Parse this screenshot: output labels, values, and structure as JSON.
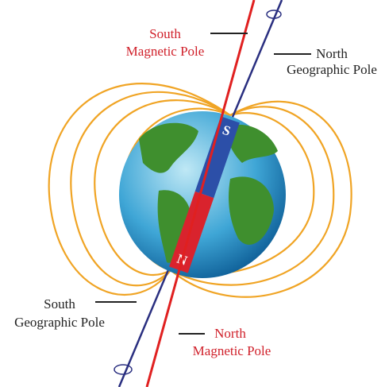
{
  "labels": {
    "south_magnetic": [
      "South",
      "Magnetic Pole"
    ],
    "north_geographic": [
      "North",
      "Geographic Pole"
    ],
    "south_geographic": [
      "South",
      "Geographic Pole"
    ],
    "north_magnetic": [
      "North",
      "Magnetic Pole"
    ]
  },
  "magnet": {
    "south": "S",
    "north": "N"
  }
}
